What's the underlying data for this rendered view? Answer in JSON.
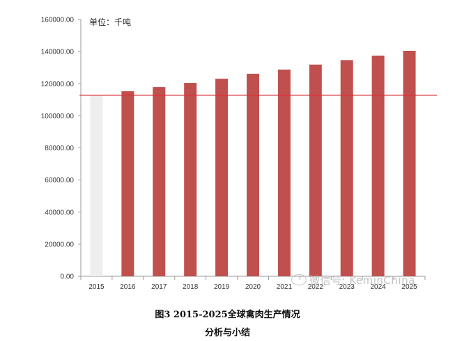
{
  "chart_data": {
    "type": "bar",
    "unit_label": "单位：千吨",
    "categories": [
      "2015",
      "2016",
      "2017",
      "2018",
      "2019",
      "2020",
      "2021",
      "2022",
      "2023",
      "2024",
      "2025"
    ],
    "values": [
      112800,
      115300,
      117900,
      120500,
      123100,
      126200,
      128800,
      131900,
      134700,
      137500,
      140500
    ],
    "highlight_index": 0,
    "bar_color": "#c0504d",
    "highlight_color": "#eeeeee",
    "reference_line": 112800,
    "reference_line_color": "#d9303a",
    "ylim": [
      0,
      160000
    ],
    "yticks": [
      0,
      20000,
      40000,
      60000,
      80000,
      100000,
      120000,
      140000,
      160000
    ],
    "ytick_labels": [
      "0.00",
      "20000.00",
      "40000.00",
      "60000.00",
      "80000.00",
      "100000.00",
      "120000.00",
      "140000.00",
      "160000.00"
    ],
    "grid": false
  },
  "caption": {
    "title": "图3 2015-2025全球禽肉生产情况",
    "subtitle": "分析与小结"
  },
  "watermark": {
    "text": "微信号: KeminChina",
    "icon": "wechat-icon"
  }
}
